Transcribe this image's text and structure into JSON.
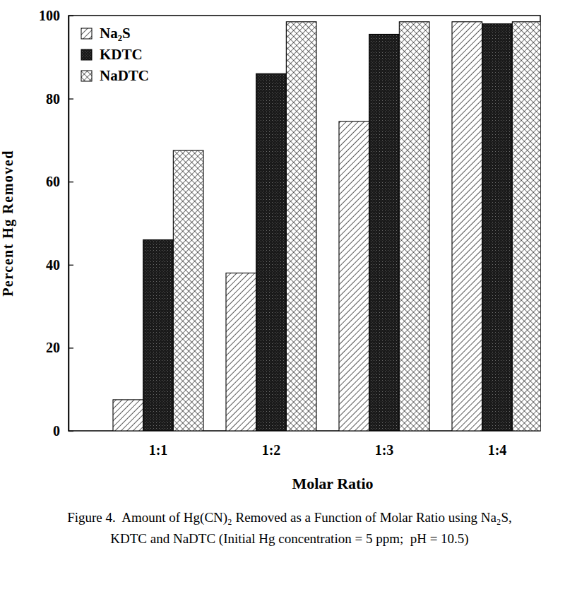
{
  "chart_data": {
    "type": "bar",
    "title": "Figure 4.  Amount of Hg(CN)₂ Removed as a Function of Molar Ratio using Na₂S, KDTC and NaDTC (Initial Hg concentration = 5 ppm;  pH = 10.5)",
    "x_label": "Molar Ratio",
    "y_label": "Percent Hg Removed",
    "categories": [
      "1:1",
      "1:2",
      "1:3",
      "1:4"
    ],
    "series": [
      {
        "name": "Na₂S",
        "color": "#000000",
        "values": [
          7.5,
          38,
          74.5,
          98.5
        ]
      },
      {
        "name": "KDTC",
        "color": "#1a1a1a",
        "values": [
          46,
          86,
          95.5,
          98
        ]
      },
      {
        "name": "NaDTC",
        "color": "#000000",
        "values": [
          67.5,
          98.5,
          98.5,
          98.5
        ]
      }
    ],
    "ylim": [
      0,
      100
    ],
    "yticks": [
      0,
      20,
      40,
      60,
      80,
      100
    ],
    "legend": "upper left",
    "grid": false
  }
}
